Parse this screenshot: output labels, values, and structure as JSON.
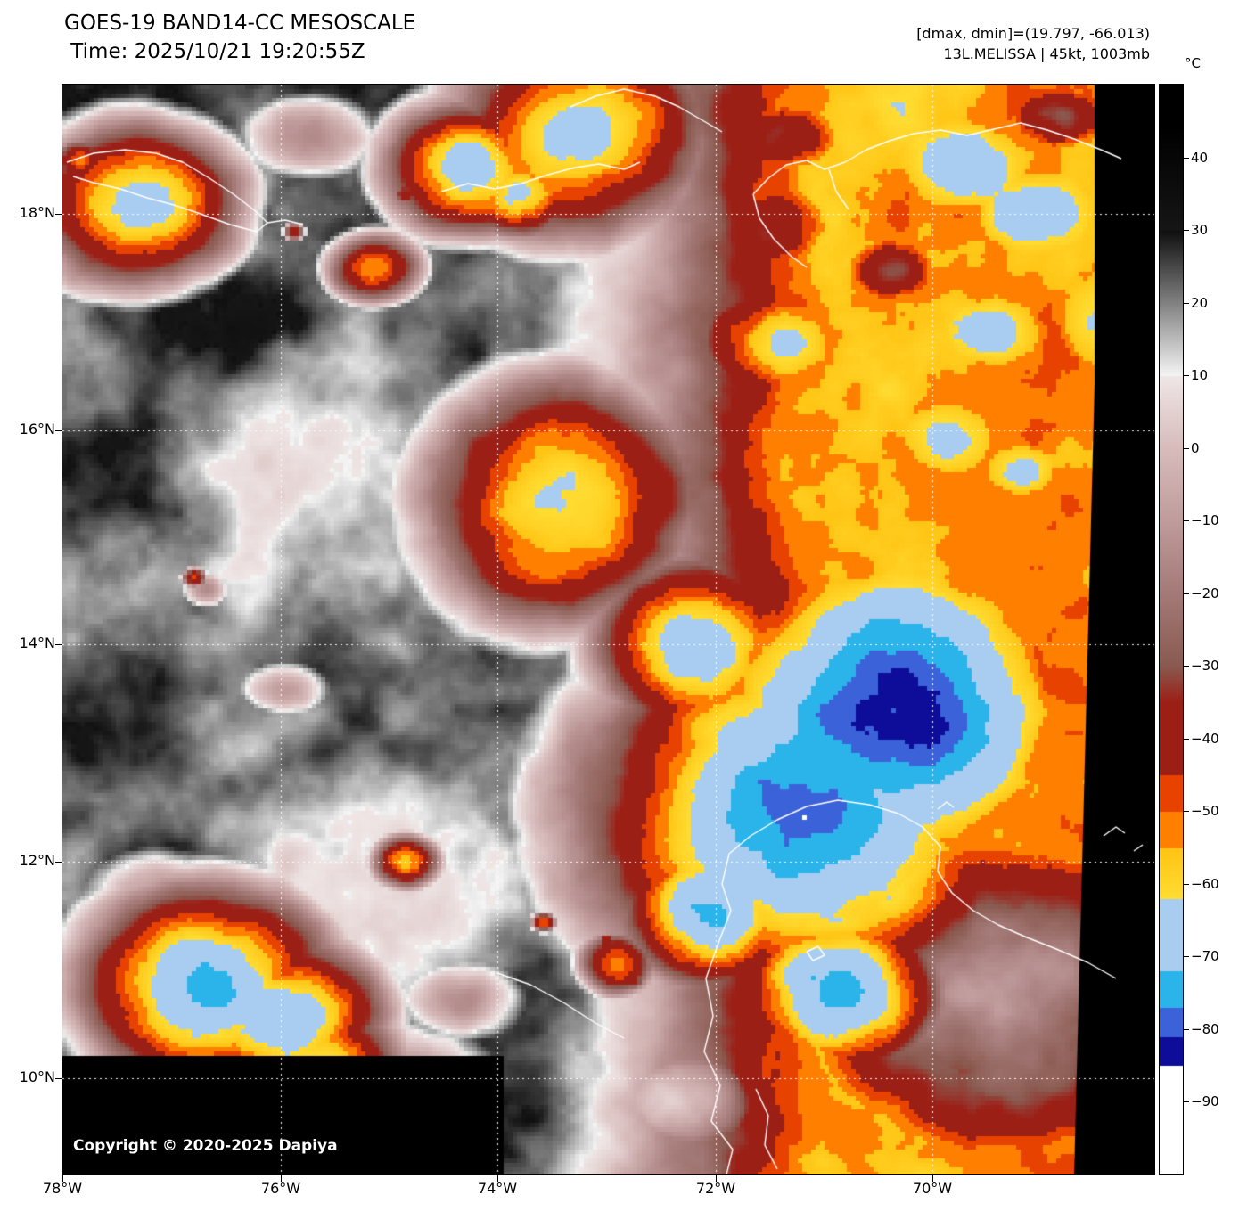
{
  "header": {
    "title_line1": "GOES-19 BAND14-CC MESOSCALE",
    "title_line2": " Time: 2025/10/21 19:20:55Z",
    "info_line1": "[dmax, dmin]=(19.797, -66.013)",
    "info_line2": "13L.MELISSA | 45kt, 1003mb"
  },
  "map": {
    "copyright": "Copyright © 2020-2025 Dapiya"
  },
  "axes": {
    "lat_ticks": [
      "18°N",
      "16°N",
      "14°N",
      "12°N",
      "10°N"
    ],
    "lon_ticks": [
      "78°W",
      "76°W",
      "74°W",
      "72°W",
      "70°W"
    ]
  },
  "colorbar": {
    "unit": "°C",
    "ticks": [
      40,
      30,
      20,
      10,
      0,
      -10,
      -20,
      -30,
      -40,
      -50,
      -60,
      -70,
      -80,
      -90
    ],
    "palette": {
      "black_max": "#000000",
      "gray_dark": "#0f0f0f",
      "gray_light": "#f5f5f5",
      "pink_light": "#efe7e6",
      "pink": "#d8bcbc",
      "mauve": "#c09c9c",
      "rose_gray": "#a47a78",
      "brown": "#8a5a50",
      "maroon": "#9c1f16",
      "red_orange": "#e84200",
      "orange": "#ff8000",
      "orange_yellow": "#ffc414",
      "yellow": "#ffdd33",
      "light_blue": "#a8cdf0",
      "cyan": "#2ab4ea",
      "royal_blue": "#3c62da",
      "navy": "#0d0d99",
      "white_cold": "#ffffff"
    },
    "grid_color": "#ffffff",
    "coast_color": "#ffffff",
    "nodata_color": "#000000"
  }
}
